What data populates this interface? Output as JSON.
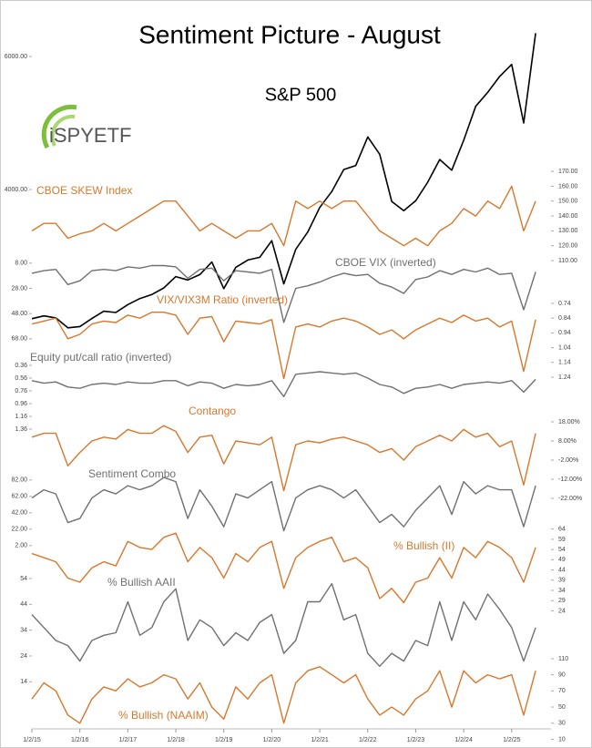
{
  "chart_data": {
    "type": "line",
    "title": "Sentiment Picture - August",
    "logo": "iSPYETF",
    "x": [
      2015,
      2015.25,
      2015.5,
      2015.75,
      2016,
      2016.25,
      2016.5,
      2016.75,
      2017,
      2017.25,
      2017.5,
      2017.75,
      2018,
      2018.25,
      2018.5,
      2018.75,
      2019,
      2019.25,
      2019.5,
      2019.75,
      2020,
      2020.25,
      2020.5,
      2020.75,
      2021,
      2021.25,
      2021.5,
      2021.75,
      2022,
      2022.25,
      2022.5,
      2022.75,
      2023,
      2023.25,
      2023.5,
      2023.75,
      2024,
      2024.25,
      2024.5,
      2024.75,
      2025,
      2025.25,
      2025.5
    ],
    "xlim": [
      2015,
      2025.82
    ],
    "xticks": [
      {
        "value": 2015,
        "label": "1/2/15"
      },
      {
        "value": 2016,
        "label": "1/2/16"
      },
      {
        "value": 2017,
        "label": "1/2/17"
      },
      {
        "value": 2018,
        "label": "1/2/18"
      },
      {
        "value": 2019,
        "label": "1/2/19"
      },
      {
        "value": 2020,
        "label": "1/2/20"
      },
      {
        "value": 2021,
        "label": "1/2/21"
      },
      {
        "value": 2022,
        "label": "1/2/22"
      },
      {
        "value": 2023,
        "label": "1/2/23"
      },
      {
        "value": 2024,
        "label": "1/2/24"
      },
      {
        "value": 2025,
        "label": "1/2/25"
      }
    ],
    "series": [
      {
        "name": "S&P 500",
        "color": "#000000",
        "axis": "left",
        "ylim": [
          -4178,
          6575
        ],
        "yticks": [
          {
            "value": 6000,
            "label": "6000.00"
          },
          {
            "value": 4000,
            "label": "4000.00"
          }
        ],
        "values": [
          2058,
          2100,
          2070,
          1920,
          1940,
          2060,
          2170,
          2150,
          2270,
          2360,
          2420,
          2520,
          2690,
          2640,
          2720,
          2910,
          2510,
          2830,
          2940,
          2980,
          3230,
          2580,
          3100,
          3360,
          3730,
          3970,
          4300,
          4360,
          4790,
          4530,
          3820,
          3680,
          3830,
          4110,
          4450,
          4290,
          4740,
          5250,
          5460,
          5700,
          5880,
          5000,
          6350
        ]
      },
      {
        "name": "CBOE SKEW Index",
        "color": "#d9772b",
        "axis": "right",
        "ylim": [
          -208,
          273
        ],
        "yticks": [
          {
            "value": 170,
            "label": "170.00"
          },
          {
            "value": 160,
            "label": "160.00"
          },
          {
            "value": 150,
            "label": "150.00"
          },
          {
            "value": 140,
            "label": "140.00"
          },
          {
            "value": 130,
            "label": "130.00"
          },
          {
            "value": 120,
            "label": "120.00"
          },
          {
            "value": 110,
            "label": "110.00"
          }
        ],
        "values": [
          130,
          135,
          135,
          125,
          128,
          130,
          135,
          130,
          135,
          140,
          145,
          150,
          150,
          140,
          130,
          135,
          130,
          125,
          130,
          130,
          135,
          120,
          150,
          145,
          150,
          145,
          150,
          150,
          140,
          130,
          125,
          120,
          125,
          120,
          130,
          135,
          145,
          140,
          150,
          145,
          160,
          130,
          150
        ]
      },
      {
        "name": "CBOE VIX (inverted)",
        "color": "#707070",
        "axis": "left",
        "ylim": [
          380.6,
          -186
        ],
        "yticks": [
          {
            "value": 8,
            "label": "8.00"
          },
          {
            "value": 28,
            "label": "28.00"
          },
          {
            "value": 48,
            "label": "48.00"
          },
          {
            "value": 68,
            "label": "68.00"
          }
        ],
        "values": [
          16,
          14,
          13,
          25,
          22,
          14,
          13,
          14,
          11,
          12,
          10,
          10,
          11,
          20,
          13,
          12,
          22,
          14,
          15,
          16,
          13,
          55,
          28,
          26,
          23,
          19,
          16,
          18,
          17,
          24,
          27,
          32,
          21,
          19,
          14,
          17,
          13,
          15,
          12,
          17,
          16,
          45,
          15
        ]
      },
      {
        "name": "VIX/VIX3M Ratio (inverted)",
        "color": "#d9772b",
        "axis": "right",
        "ylim": [
          3.654,
          -1.192
        ],
        "yticks": [
          0.74,
          0.84,
          0.94,
          1.04,
          1.14,
          1.24
        ],
        "values": [
          0.88,
          0.86,
          0.84,
          0.98,
          0.95,
          0.88,
          0.86,
          0.87,
          0.82,
          0.84,
          0.8,
          0.8,
          0.82,
          0.95,
          0.84,
          0.83,
          1.0,
          0.86,
          0.87,
          0.88,
          0.85,
          1.25,
          0.9,
          0.88,
          0.9,
          0.86,
          0.84,
          0.86,
          0.9,
          0.95,
          0.92,
          0.98,
          0.92,
          0.88,
          0.84,
          0.87,
          0.82,
          0.86,
          0.84,
          0.9,
          0.86,
          1.2,
          0.85
        ]
      },
      {
        "name": "Equity put/call ratio  (inverted)",
        "color": "#707070",
        "axis": "left",
        "ylim": [
          6.131,
          -5.083
        ],
        "yticks": [
          0.36,
          0.56,
          0.76,
          0.96,
          1.16,
          1.36
        ],
        "values": [
          0.6,
          0.64,
          0.62,
          0.7,
          0.72,
          0.66,
          0.64,
          0.66,
          0.62,
          0.64,
          0.64,
          0.6,
          0.6,
          0.68,
          0.62,
          0.64,
          0.72,
          0.66,
          0.68,
          0.66,
          0.6,
          0.85,
          0.5,
          0.48,
          0.46,
          0.48,
          0.5,
          0.48,
          0.56,
          0.66,
          0.7,
          0.8,
          0.72,
          0.7,
          0.66,
          0.72,
          0.66,
          0.64,
          0.62,
          0.64,
          0.6,
          0.78,
          0.58
        ]
      },
      {
        "name": "Contango",
        "color": "#d9772b",
        "axis": "right",
        "ylim": [
          -144.9,
          229
        ],
        "yticks": [
          {
            "value": 18,
            "label": "18.00%"
          },
          {
            "value": 8,
            "label": "8.00%"
          },
          {
            "value": -2,
            "label": "-2.00%"
          },
          {
            "value": -12,
            "label": "-12.00%"
          },
          {
            "value": -22,
            "label": "-22.00%"
          }
        ],
        "values": [
          10,
          12,
          12,
          -5,
          2,
          8,
          10,
          9,
          14,
          12,
          12,
          16,
          13,
          2,
          10,
          11,
          -4,
          8,
          7,
          6,
          10,
          -18,
          6,
          8,
          7,
          9,
          10,
          8,
          6,
          2,
          4,
          -2,
          5,
          8,
          11,
          8,
          14,
          10,
          12,
          5,
          8,
          -15,
          12
        ]
      },
      {
        "name": "Sentiment Combo",
        "color": "#707070",
        "axis": "left",
        "ylim": [
          -227,
          645
        ],
        "yticks": [
          {
            "value": 82,
            "label": "82.00"
          },
          {
            "value": 62,
            "label": "62.00"
          },
          {
            "value": 42,
            "label": "42.00"
          },
          {
            "value": 22,
            "label": "22.00"
          },
          {
            "value": 2,
            "label": "2.00"
          }
        ],
        "values": [
          60,
          70,
          65,
          30,
          35,
          60,
          70,
          65,
          75,
          70,
          75,
          85,
          80,
          35,
          70,
          50,
          25,
          65,
          60,
          70,
          80,
          20,
          60,
          70,
          75,
          70,
          60,
          70,
          50,
          30,
          40,
          25,
          45,
          60,
          75,
          40,
          80,
          65,
          75,
          70,
          70,
          25,
          75
        ]
      },
      {
        "name": "% Bullish (II)",
        "color": "#d9772b",
        "axis": "right",
        "ylim": [
          -36,
          314
        ],
        "yticks": [
          64,
          59,
          54,
          49,
          44,
          39,
          34,
          29,
          24
        ],
        "values": [
          52,
          50,
          48,
          40,
          38,
          45,
          48,
          46,
          58,
          55,
          54,
          60,
          62,
          48,
          55,
          50,
          40,
          52,
          48,
          55,
          58,
          35,
          50,
          55,
          58,
          60,
          48,
          50,
          45,
          30,
          35,
          28,
          38,
          40,
          50,
          40,
          55,
          50,
          58,
          55,
          50,
          38,
          55
        ]
      },
      {
        "name": "% Bullish AAII",
        "color": "#707070",
        "axis": "left",
        "ylim": [
          -6,
          271
        ],
        "yticks": [
          54,
          44,
          34,
          24,
          14
        ],
        "values": [
          40,
          35,
          30,
          28,
          22,
          30,
          32,
          33,
          45,
          32,
          35,
          45,
          50,
          30,
          38,
          35,
          28,
          33,
          30,
          37,
          40,
          25,
          30,
          45,
          45,
          52,
          38,
          40,
          25,
          20,
          25,
          22,
          30,
          28,
          45,
          30,
          45,
          38,
          48,
          42,
          35,
          22,
          35
        ]
      },
      {
        "name": "% Bullish (NAAIM)",
        "color": "#d9772b",
        "axis": "right",
        "ylim": [
          17.3,
          904
        ],
        "yticks": [
          110,
          90,
          70,
          50,
          30,
          10
        ],
        "values": [
          60,
          80,
          70,
          40,
          30,
          60,
          75,
          70,
          85,
          75,
          80,
          90,
          85,
          60,
          80,
          50,
          35,
          75,
          60,
          80,
          90,
          30,
          80,
          95,
          100,
          90,
          80,
          90,
          60,
          40,
          50,
          40,
          60,
          70,
          95,
          50,
          95,
          80,
          90,
          85,
          90,
          40,
          95
        ]
      }
    ]
  }
}
